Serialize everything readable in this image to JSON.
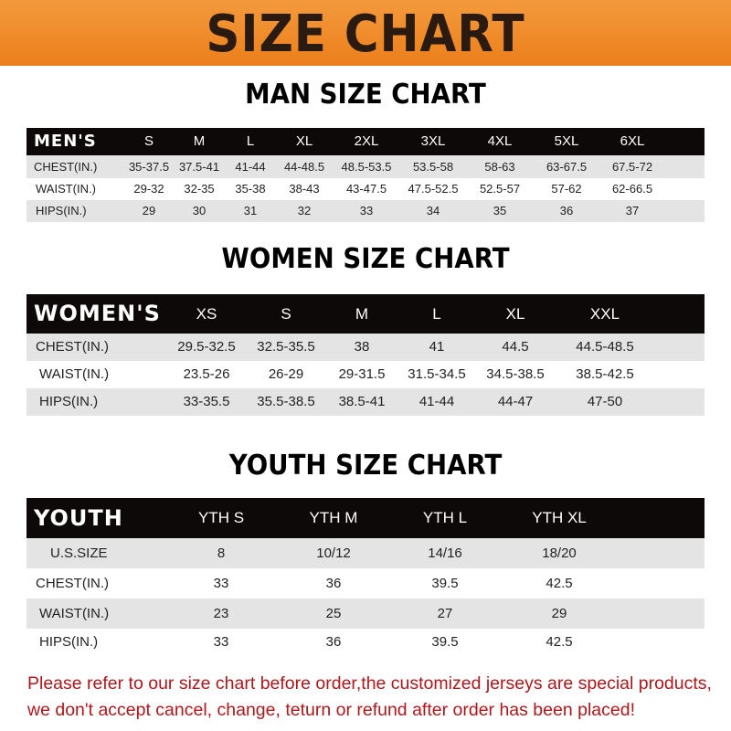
{
  "title": "SIZE CHART",
  "colors": {
    "banner": "#ec7f1c",
    "header_row": "#0d0909",
    "stripe": "#e4e4e4",
    "note": "#b0171b"
  },
  "men": {
    "heading": "MAN SIZE CHART",
    "corner": "MEN'S",
    "sizes": [
      "S",
      "M",
      "L",
      "XL",
      "2XL",
      "3XL",
      "4XL",
      "5XL",
      "6XL"
    ],
    "rows": [
      {
        "label": "CHEST(IN.)",
        "values": [
          "35-37.5",
          "37.5-41",
          "41-44",
          "44-48.5",
          "48.5-53.5",
          "53.5-58",
          "58-63",
          "63-67.5",
          "67.5-72"
        ]
      },
      {
        "label": "WAIST(IN.)",
        "values": [
          "29-32",
          "32-35",
          "35-38",
          "38-43",
          "43-47.5",
          "47.5-52.5",
          "52.5-57",
          "57-62",
          "62-66.5"
        ]
      },
      {
        "label": "HIPS(IN.)",
        "values": [
          "29",
          "30",
          "31",
          "32",
          "33",
          "34",
          "35",
          "36",
          "37"
        ]
      }
    ]
  },
  "women": {
    "heading": "WOMEN SIZE CHART",
    "corner": "WOMEN'S",
    "sizes": [
      "XS",
      "S",
      "M",
      "L",
      "XL",
      "XXL"
    ],
    "rows": [
      {
        "label": "CHEST(IN.)",
        "values": [
          "29.5-32.5",
          "32.5-35.5",
          "38",
          "41",
          "44.5",
          "44.5-48.5"
        ]
      },
      {
        "label": "WAIST(IN.)",
        "values": [
          "23.5-26",
          "26-29",
          "29-31.5",
          "31.5-34.5",
          "34.5-38.5",
          "38.5-42.5"
        ]
      },
      {
        "label": "HIPS(IN.)",
        "values": [
          "33-35.5",
          "35.5-38.5",
          "38.5-41",
          "41-44",
          "44-47",
          "47-50"
        ]
      }
    ]
  },
  "youth": {
    "heading": "YOUTH SIZE CHART",
    "corner": "YOUTH",
    "sizes": [
      "YTH S",
      "YTH M",
      "YTH L",
      "YTH XL"
    ],
    "rows": [
      {
        "label": "U.S.SIZE",
        "values": [
          "8",
          "10/12",
          "14/16",
          "18/20"
        ]
      },
      {
        "label": "CHEST(IN.)",
        "values": [
          "33",
          "36",
          "39.5",
          "42.5"
        ]
      },
      {
        "label": "WAIST(IN.)",
        "values": [
          "23",
          "25",
          "27",
          "29"
        ]
      },
      {
        "label": "HIPS(IN.)",
        "values": [
          "33",
          "36",
          "39.5",
          "42.5"
        ]
      }
    ]
  },
  "note": "Please refer to our size chart before order,the customized jerseys are special products, we don't accept cancel, change, teturn or refund after order has been placed!"
}
